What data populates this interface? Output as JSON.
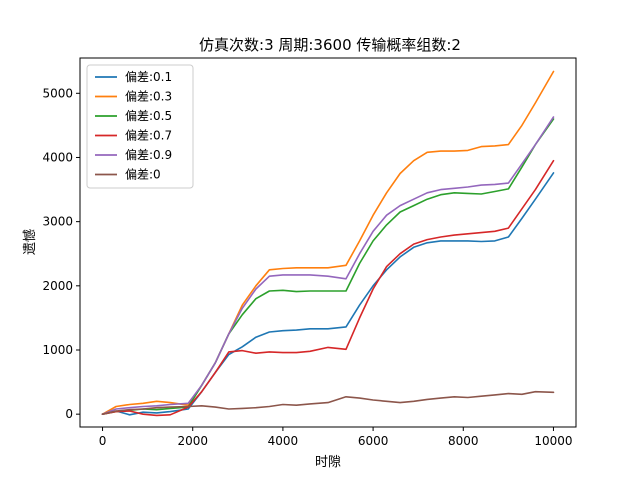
{
  "chart_data": {
    "type": "line",
    "title": "仿真次数:3 周期:3600 传输概率组数:2",
    "xlabel": "时隙",
    "ylabel": "遗憾",
    "xlim": [
      -500,
      10500
    ],
    "ylim": [
      -200,
      5550
    ],
    "xticks": [
      0,
      2000,
      4000,
      6000,
      8000,
      10000
    ],
    "yticks": [
      0,
      1000,
      2000,
      3000,
      4000,
      5000
    ],
    "grid": false,
    "legend_position": "top-left",
    "series": [
      {
        "name": "偏差:0.1",
        "color": "#1f77b4",
        "points": [
          [
            0,
            0
          ],
          [
            300,
            50
          ],
          [
            600,
            -10
          ],
          [
            900,
            30
          ],
          [
            1200,
            20
          ],
          [
            1500,
            40
          ],
          [
            1900,
            80
          ],
          [
            2200,
            350
          ],
          [
            2500,
            650
          ],
          [
            2800,
            930
          ],
          [
            3100,
            1050
          ],
          [
            3400,
            1200
          ],
          [
            3700,
            1280
          ],
          [
            4000,
            1300
          ],
          [
            4300,
            1310
          ],
          [
            4600,
            1330
          ],
          [
            5000,
            1330
          ],
          [
            5400,
            1360
          ],
          [
            5700,
            1700
          ],
          [
            6000,
            2000
          ],
          [
            6300,
            2250
          ],
          [
            6600,
            2450
          ],
          [
            6900,
            2600
          ],
          [
            7200,
            2670
          ],
          [
            7500,
            2700
          ],
          [
            7800,
            2700
          ],
          [
            8100,
            2700
          ],
          [
            8400,
            2690
          ],
          [
            8700,
            2700
          ],
          [
            9000,
            2760
          ],
          [
            9300,
            3050
          ],
          [
            9600,
            3350
          ],
          [
            10000,
            3760
          ]
        ]
      },
      {
        "name": "偏差:0.3",
        "color": "#ff7f0e",
        "points": [
          [
            0,
            0
          ],
          [
            300,
            120
          ],
          [
            600,
            150
          ],
          [
            900,
            170
          ],
          [
            1200,
            200
          ],
          [
            1500,
            180
          ],
          [
            1900,
            140
          ],
          [
            2200,
            450
          ],
          [
            2500,
            800
          ],
          [
            2800,
            1250
          ],
          [
            3100,
            1700
          ],
          [
            3400,
            2000
          ],
          [
            3700,
            2250
          ],
          [
            4000,
            2270
          ],
          [
            4300,
            2280
          ],
          [
            4600,
            2280
          ],
          [
            5000,
            2280
          ],
          [
            5400,
            2320
          ],
          [
            5700,
            2700
          ],
          [
            6000,
            3100
          ],
          [
            6300,
            3450
          ],
          [
            6600,
            3750
          ],
          [
            6900,
            3950
          ],
          [
            7200,
            4080
          ],
          [
            7500,
            4100
          ],
          [
            7800,
            4100
          ],
          [
            8100,
            4110
          ],
          [
            8400,
            4170
          ],
          [
            8700,
            4180
          ],
          [
            9000,
            4200
          ],
          [
            9300,
            4500
          ],
          [
            9600,
            4850
          ],
          [
            10000,
            5340
          ]
        ]
      },
      {
        "name": "偏差:0.5",
        "color": "#2ca02c",
        "points": [
          [
            0,
            0
          ],
          [
            300,
            40
          ],
          [
            600,
            60
          ],
          [
            900,
            80
          ],
          [
            1200,
            70
          ],
          [
            1500,
            90
          ],
          [
            1900,
            110
          ],
          [
            2200,
            450
          ],
          [
            2500,
            800
          ],
          [
            2800,
            1250
          ],
          [
            3100,
            1550
          ],
          [
            3400,
            1800
          ],
          [
            3700,
            1920
          ],
          [
            4000,
            1930
          ],
          [
            4300,
            1910
          ],
          [
            4600,
            1920
          ],
          [
            5000,
            1920
          ],
          [
            5400,
            1920
          ],
          [
            5700,
            2350
          ],
          [
            6000,
            2700
          ],
          [
            6300,
            2950
          ],
          [
            6600,
            3150
          ],
          [
            6900,
            3250
          ],
          [
            7200,
            3350
          ],
          [
            7500,
            3420
          ],
          [
            7800,
            3450
          ],
          [
            8100,
            3440
          ],
          [
            8400,
            3430
          ],
          [
            8700,
            3470
          ],
          [
            9000,
            3510
          ],
          [
            9300,
            3850
          ],
          [
            9600,
            4200
          ],
          [
            10000,
            4600
          ]
        ]
      },
      {
        "name": "偏差:0.7",
        "color": "#d62728",
        "points": [
          [
            0,
            0
          ],
          [
            300,
            40
          ],
          [
            600,
            50
          ],
          [
            900,
            0
          ],
          [
            1200,
            -20
          ],
          [
            1500,
            -10
          ],
          [
            1900,
            110
          ],
          [
            2200,
            350
          ],
          [
            2500,
            650
          ],
          [
            2800,
            970
          ],
          [
            3100,
            990
          ],
          [
            3400,
            950
          ],
          [
            3700,
            970
          ],
          [
            4000,
            960
          ],
          [
            4300,
            960
          ],
          [
            4600,
            980
          ],
          [
            5000,
            1040
          ],
          [
            5400,
            1010
          ],
          [
            5700,
            1500
          ],
          [
            6000,
            1950
          ],
          [
            6300,
            2300
          ],
          [
            6600,
            2500
          ],
          [
            6900,
            2650
          ],
          [
            7200,
            2720
          ],
          [
            7500,
            2760
          ],
          [
            7800,
            2790
          ],
          [
            8100,
            2810
          ],
          [
            8400,
            2830
          ],
          [
            8700,
            2850
          ],
          [
            9000,
            2900
          ],
          [
            9300,
            3200
          ],
          [
            9600,
            3500
          ],
          [
            10000,
            3950
          ]
        ]
      },
      {
        "name": "偏差:0.9",
        "color": "#9467bd",
        "points": [
          [
            0,
            0
          ],
          [
            300,
            80
          ],
          [
            600,
            100
          ],
          [
            900,
            120
          ],
          [
            1200,
            130
          ],
          [
            1500,
            150
          ],
          [
            1900,
            170
          ],
          [
            2200,
            450
          ],
          [
            2500,
            800
          ],
          [
            2800,
            1250
          ],
          [
            3100,
            1650
          ],
          [
            3400,
            1950
          ],
          [
            3700,
            2150
          ],
          [
            4000,
            2170
          ],
          [
            4300,
            2170
          ],
          [
            4600,
            2170
          ],
          [
            5000,
            2150
          ],
          [
            5400,
            2110
          ],
          [
            5700,
            2500
          ],
          [
            6000,
            2850
          ],
          [
            6300,
            3100
          ],
          [
            6600,
            3250
          ],
          [
            6900,
            3350
          ],
          [
            7200,
            3450
          ],
          [
            7500,
            3500
          ],
          [
            7800,
            3520
          ],
          [
            8100,
            3540
          ],
          [
            8400,
            3570
          ],
          [
            8700,
            3580
          ],
          [
            9000,
            3600
          ],
          [
            9300,
            3900
          ],
          [
            9600,
            4200
          ],
          [
            10000,
            4630
          ]
        ]
      },
      {
        "name": "偏差:0",
        "color": "#8c564b",
        "points": [
          [
            0,
            0
          ],
          [
            300,
            50
          ],
          [
            600,
            70
          ],
          [
            900,
            80
          ],
          [
            1200,
            100
          ],
          [
            1500,
            110
          ],
          [
            1900,
            120
          ],
          [
            2200,
            130
          ],
          [
            2500,
            110
          ],
          [
            2800,
            80
          ],
          [
            3100,
            90
          ],
          [
            3400,
            100
          ],
          [
            3700,
            120
          ],
          [
            4000,
            150
          ],
          [
            4300,
            140
          ],
          [
            4600,
            160
          ],
          [
            5000,
            180
          ],
          [
            5400,
            270
          ],
          [
            5700,
            250
          ],
          [
            6000,
            220
          ],
          [
            6300,
            200
          ],
          [
            6600,
            180
          ],
          [
            6900,
            200
          ],
          [
            7200,
            230
          ],
          [
            7500,
            250
          ],
          [
            7800,
            270
          ],
          [
            8100,
            260
          ],
          [
            8400,
            280
          ],
          [
            8700,
            300
          ],
          [
            9000,
            320
          ],
          [
            9300,
            310
          ],
          [
            9600,
            350
          ],
          [
            10000,
            340
          ]
        ]
      }
    ]
  }
}
